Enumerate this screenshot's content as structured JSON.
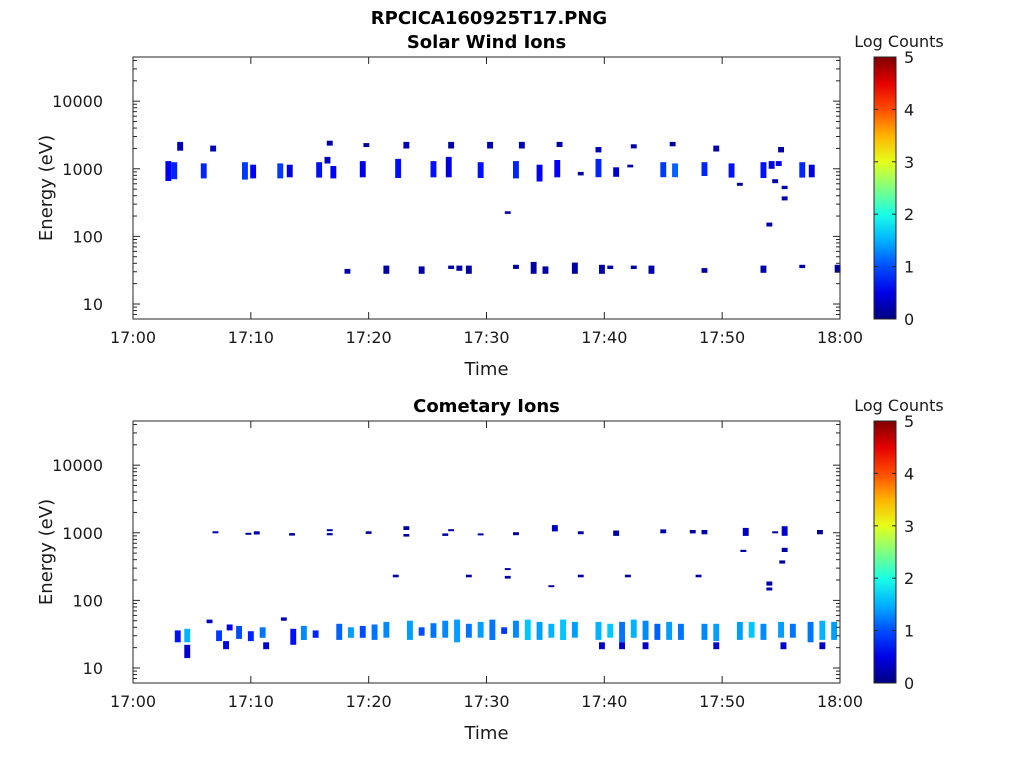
{
  "figure_title": "RPCICA160925T17.PNG",
  "chart_data": [
    {
      "type": "heatmap",
      "title": "Solar Wind Ions",
      "xlabel": "Time",
      "ylabel": "Energy (eV)",
      "y_scale": "log",
      "ylim": [
        6,
        45000
      ],
      "xlim": [
        "17:00",
        "18:00"
      ],
      "x_ticks": [
        "17:00",
        "17:10",
        "17:20",
        "17:30",
        "17:40",
        "17:50",
        "18:00"
      ],
      "y_ticks": [
        "10",
        "100",
        "1000",
        "10000"
      ],
      "grid": false,
      "colorbar": {
        "label": "Log Counts",
        "min": 0,
        "max": 5,
        "ticks": [
          "0",
          "1",
          "2",
          "3",
          "4",
          "5"
        ],
        "colormap": "jet"
      },
      "cells": [
        [
          3.0,
          660,
          1300,
          0.6
        ],
        [
          3.5,
          700,
          1250,
          0.8
        ],
        [
          4.0,
          1850,
          2500,
          0.3
        ],
        [
          6.0,
          720,
          1200,
          0.8
        ],
        [
          6.8,
          1800,
          2200,
          0.3
        ],
        [
          9.5,
          690,
          1250,
          0.9
        ],
        [
          10.2,
          720,
          1150,
          0.6
        ],
        [
          12.5,
          720,
          1200,
          0.9
        ],
        [
          13.3,
          750,
          1150,
          0.5
        ],
        [
          15.8,
          740,
          1250,
          0.7
        ],
        [
          16.5,
          1200,
          1500,
          0.3
        ],
        [
          16.7,
          2200,
          2600,
          0.2
        ],
        [
          17.0,
          720,
          1100,
          0.6
        ],
        [
          19.5,
          750,
          1300,
          0.5
        ],
        [
          19.8,
          2100,
          2400,
          0.2
        ],
        [
          22.5,
          730,
          1400,
          0.7
        ],
        [
          23.2,
          2000,
          2500,
          0.3
        ],
        [
          25.5,
          750,
          1300,
          0.7
        ],
        [
          26.8,
          750,
          1500,
          0.5
        ],
        [
          27.0,
          2000,
          2500,
          0.2
        ],
        [
          29.5,
          730,
          1250,
          0.7
        ],
        [
          30.3,
          2000,
          2500,
          0.3
        ],
        [
          32.5,
          720,
          1300,
          0.8
        ],
        [
          33.0,
          2000,
          2500,
          0.3
        ],
        [
          34.5,
          650,
          1150,
          0.6
        ],
        [
          36.0,
          750,
          1350,
          0.6
        ],
        [
          36.2,
          2100,
          2500,
          0.2
        ],
        [
          38.0,
          800,
          900,
          0.2
        ],
        [
          39.5,
          750,
          1400,
          0.8
        ],
        [
          39.5,
          1750,
          2100,
          0.3
        ],
        [
          41.0,
          760,
          1050,
          0.4
        ],
        [
          42.2,
          1050,
          1150,
          0.2
        ],
        [
          42.5,
          2000,
          2300,
          0.2
        ],
        [
          45.0,
          750,
          1250,
          0.9
        ],
        [
          46.0,
          750,
          1200,
          1.1
        ],
        [
          45.8,
          2150,
          2500,
          0.2
        ],
        [
          48.5,
          780,
          1250,
          0.8
        ],
        [
          49.5,
          1800,
          2200,
          0.2
        ],
        [
          50.8,
          740,
          1200,
          0.7
        ],
        [
          51.5,
          560,
          620,
          0.2
        ],
        [
          53.5,
          730,
          1250,
          0.7
        ],
        [
          54.2,
          1000,
          1300,
          0.5
        ],
        [
          54.5,
          610,
          700,
          0.2
        ],
        [
          55.0,
          1750,
          2100,
          0.2
        ],
        [
          54.8,
          1100,
          1300,
          0.5
        ],
        [
          55.3,
          500,
          560,
          0.2
        ],
        [
          55.3,
          340,
          390,
          0.2
        ],
        [
          54.0,
          140,
          160,
          0.2
        ],
        [
          56.8,
          740,
          1250,
          0.8
        ],
        [
          57.6,
          750,
          1150,
          0.5
        ],
        [
          31.8,
          215,
          235,
          0.2
        ],
        [
          18.2,
          28,
          33,
          0.2
        ],
        [
          21.5,
          28,
          37,
          0.2
        ],
        [
          24.5,
          28,
          36,
          0.2
        ],
        [
          27.0,
          33,
          37,
          0.2
        ],
        [
          27.7,
          31,
          37,
          0.2
        ],
        [
          28.5,
          28,
          37,
          0.2
        ],
        [
          32.5,
          33,
          38,
          0.2
        ],
        [
          34.0,
          28,
          42,
          0.2
        ],
        [
          35.0,
          28,
          36,
          0.2
        ],
        [
          37.5,
          28,
          41,
          0.2
        ],
        [
          39.8,
          28,
          38,
          0.2
        ],
        [
          40.5,
          33,
          37,
          0.2
        ],
        [
          42.5,
          33,
          37,
          0.2
        ],
        [
          44.0,
          28,
          37,
          0.2
        ],
        [
          48.5,
          29,
          34,
          0.2
        ],
        [
          53.5,
          29,
          37,
          0.2
        ],
        [
          56.8,
          34,
          38,
          0.2
        ],
        [
          59.8,
          29,
          38,
          0.2
        ]
      ]
    },
    {
      "type": "heatmap",
      "title": "Cometary Ions",
      "xlabel": "Time",
      "ylabel": "Energy (eV)",
      "y_scale": "log",
      "ylim": [
        6,
        45000
      ],
      "xlim": [
        "17:00",
        "18:00"
      ],
      "x_ticks": [
        "17:00",
        "17:10",
        "17:20",
        "17:30",
        "17:40",
        "17:50",
        "18:00"
      ],
      "y_ticks": [
        "10",
        "100",
        "1000",
        "10000"
      ],
      "grid": false,
      "colorbar": {
        "label": "Log Counts",
        "min": 0,
        "max": 5,
        "ticks": [
          "0",
          "1",
          "2",
          "3",
          "4",
          "5"
        ],
        "colormap": "jet"
      },
      "cells": [
        [
          3.8,
          24,
          36,
          0.7
        ],
        [
          4.6,
          24,
          38,
          1.5
        ],
        [
          4.6,
          14,
          22,
          0.4
        ],
        [
          6.5,
          46,
          52,
          0.3
        ],
        [
          7.3,
          25,
          36,
          0.9
        ],
        [
          7.9,
          19,
          25,
          0.5
        ],
        [
          8.2,
          36,
          44,
          0.6
        ],
        [
          9.0,
          27,
          42,
          1.0
        ],
        [
          10.0,
          25,
          35,
          0.8
        ],
        [
          11.0,
          28,
          40,
          1.2
        ],
        [
          11.3,
          19,
          24,
          0.4
        ],
        [
          12.8,
          50,
          56,
          0.3
        ],
        [
          13.6,
          22,
          38,
          0.7
        ],
        [
          14.5,
          26,
          42,
          1.3
        ],
        [
          15.5,
          28,
          36,
          0.8
        ],
        [
          17.5,
          26,
          45,
          1.1
        ],
        [
          18.5,
          28,
          40,
          1.4
        ],
        [
          19.5,
          28,
          42,
          1.0
        ],
        [
          20.5,
          26,
          44,
          1.2
        ],
        [
          21.5,
          28,
          48,
          1.3
        ],
        [
          23.5,
          26,
          50,
          1.4
        ],
        [
          24.5,
          30,
          40,
          1.0
        ],
        [
          25.5,
          28,
          46,
          1.2
        ],
        [
          26.5,
          28,
          50,
          1.3
        ],
        [
          27.5,
          24,
          52,
          1.4
        ],
        [
          28.5,
          28,
          45,
          1.2
        ],
        [
          29.5,
          28,
          48,
          1.4
        ],
        [
          30.5,
          26,
          52,
          1.2
        ],
        [
          31.5,
          32,
          40,
          0.9
        ],
        [
          32.5,
          28,
          50,
          1.3
        ],
        [
          33.5,
          26,
          52,
          1.6
        ],
        [
          34.5,
          26,
          48,
          1.4
        ],
        [
          35.5,
          28,
          45,
          1.5
        ],
        [
          36.5,
          26,
          52,
          1.6
        ],
        [
          37.5,
          28,
          48,
          1.4
        ],
        [
          39.5,
          26,
          48,
          1.5
        ],
        [
          40.5,
          28,
          45,
          1.6
        ],
        [
          41.5,
          24,
          48,
          1.2
        ],
        [
          42.5,
          28,
          52,
          1.5
        ],
        [
          43.5,
          26,
          50,
          1.3
        ],
        [
          44.5,
          26,
          45,
          1.1
        ],
        [
          45.5,
          26,
          48,
          1.4
        ],
        [
          46.5,
          26,
          45,
          1.2
        ],
        [
          48.5,
          26,
          45,
          1.3
        ],
        [
          49.5,
          25,
          45,
          1.4
        ],
        [
          51.5,
          26,
          48,
          1.4
        ],
        [
          52.5,
          28,
          48,
          1.6
        ],
        [
          53.5,
          26,
          45,
          1.3
        ],
        [
          55.0,
          28,
          48,
          1.4
        ],
        [
          56.0,
          28,
          45,
          1.2
        ],
        [
          57.5,
          24,
          48,
          1.2
        ],
        [
          58.5,
          26,
          50,
          1.5
        ],
        [
          59.5,
          26,
          48,
          1.4
        ],
        [
          39.8,
          19,
          24,
          0.4
        ],
        [
          41.5,
          19,
          24,
          0.4
        ],
        [
          43.5,
          19,
          24,
          0.4
        ],
        [
          49.5,
          19,
          24,
          0.4
        ],
        [
          55.2,
          19,
          24,
          0.4
        ],
        [
          58.5,
          19,
          24,
          0.4
        ],
        [
          7.0,
          990,
          1050,
          0.2
        ],
        [
          9.8,
          940,
          1000,
          0.2
        ],
        [
          10.5,
          940,
          1050,
          0.2
        ],
        [
          13.5,
          910,
          990,
          0.2
        ],
        [
          16.7,
          920,
          990,
          0.2
        ],
        [
          16.7,
          1070,
          1130,
          0.2
        ],
        [
          20.0,
          960,
          1050,
          0.2
        ],
        [
          23.2,
          880,
          960,
          0.2
        ],
        [
          23.2,
          1100,
          1250,
          0.2
        ],
        [
          26.5,
          900,
          980,
          0.2
        ],
        [
          27.0,
          1070,
          1130,
          0.2
        ],
        [
          29.5,
          920,
          980,
          0.2
        ],
        [
          32.5,
          920,
          1020,
          0.2
        ],
        [
          35.8,
          1050,
          1300,
          0.3
        ],
        [
          38.0,
          950,
          1050,
          0.2
        ],
        [
          41.0,
          900,
          1080,
          0.2
        ],
        [
          45.0,
          980,
          1120,
          0.2
        ],
        [
          47.5,
          980,
          1100,
          0.2
        ],
        [
          48.5,
          950,
          1100,
          0.2
        ],
        [
          52.0,
          900,
          1180,
          0.3
        ],
        [
          55.3,
          900,
          1250,
          0.4
        ],
        [
          54.5,
          990,
          1050,
          0.2
        ],
        [
          58.3,
          950,
          1100,
          0.2
        ],
        [
          51.8,
          520,
          560,
          0.2
        ],
        [
          55.3,
          520,
          600,
          0.2
        ],
        [
          55.1,
          350,
          390,
          0.2
        ],
        [
          22.3,
          220,
          240,
          0.2
        ],
        [
          28.5,
          220,
          240,
          0.2
        ],
        [
          31.8,
          210,
          230,
          0.2
        ],
        [
          31.8,
          280,
          300,
          0.2
        ],
        [
          38.0,
          220,
          240,
          0.2
        ],
        [
          42.0,
          220,
          240,
          0.2
        ],
        [
          48.0,
          220,
          240,
          0.2
        ],
        [
          54.0,
          140,
          155,
          0.2
        ],
        [
          54.0,
          165,
          190,
          0.2
        ],
        [
          35.5,
          158,
          168,
          0.2
        ]
      ]
    }
  ]
}
